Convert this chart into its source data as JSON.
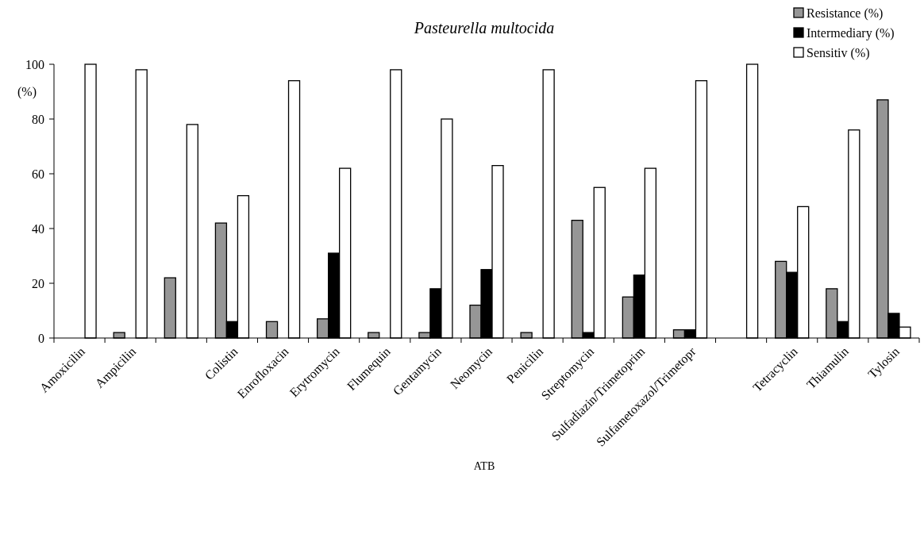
{
  "chart_data": {
    "type": "bar",
    "title": "Pasteurella multocida",
    "xlabel": "ATB",
    "ylabel": "(%)",
    "categories": [
      "Amoxicilin",
      "Ampicilin",
      null,
      "Colistin",
      "Enrofloxacin",
      "Erytromycin",
      "Flumequin",
      "Gentamycin",
      "Neomycin",
      "Penicilin",
      "Streptomycin",
      "Sulfadiazin/Trimetoprim",
      "Sulfametoxazol/Trimetopr",
      null,
      "Tetracyclin",
      "Thiamulin",
      "Tylosin"
    ],
    "series": [
      {
        "name": "Resistance (%)",
        "color": "#969696",
        "values": [
          0,
          2,
          22,
          42,
          6,
          7,
          2,
          2,
          12,
          2,
          43,
          15,
          3,
          0,
          28,
          18,
          87
        ]
      },
      {
        "name": "Intermediary (%)",
        "color": "#000000",
        "values": [
          0,
          0,
          0,
          6,
          0,
          31,
          0,
          18,
          25,
          0,
          2,
          23,
          3,
          0,
          24,
          6,
          9
        ]
      },
      {
        "name": "Sensitiv (%)",
        "color": "#ffffff",
        "values": [
          100,
          98,
          78,
          52,
          94,
          62,
          98,
          80,
          63,
          98,
          55,
          62,
          94,
          100,
          48,
          76,
          4
        ]
      }
    ],
    "ylim": [
      0,
      100
    ],
    "yticks": [
      0,
      20,
      40,
      60,
      80,
      100
    ],
    "grid": false,
    "legend": "top right"
  }
}
